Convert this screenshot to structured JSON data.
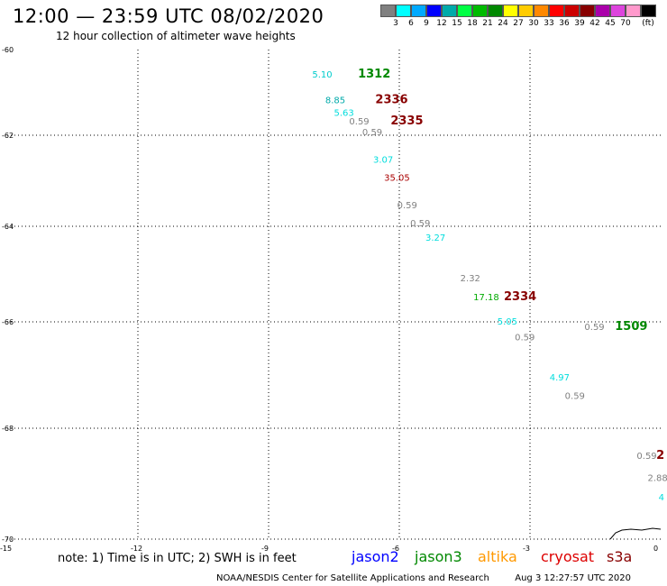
{
  "header": {
    "title": "12:00 — 23:59 UTC 08/02/2020",
    "subtitle": "12 hour collection of altimeter wave heights"
  },
  "legend": {
    "colors": [
      "#808080",
      "#00ffff",
      "#00aaff",
      "#0000ff",
      "#00aaaa",
      "#00ff44",
      "#00bb00",
      "#008800",
      "#ffff00",
      "#ffcc00",
      "#ff8800",
      "#ff0000",
      "#cc0000",
      "#880000",
      "#aa00aa",
      "#dd44dd",
      "#ff99cc",
      "#000000"
    ],
    "labels": [
      "3",
      "6",
      "9",
      "12",
      "15",
      "18",
      "21",
      "24",
      "27",
      "30",
      "33",
      "36",
      "39",
      "42",
      "45",
      "70",
      "(ft)"
    ]
  },
  "axes": {
    "y_ticks": [
      "-60",
      "-62",
      "-64",
      "-66",
      "-68",
      "-70"
    ],
    "x_ticks": [
      "-15",
      "-12",
      "-9",
      "-6",
      "-3",
      "0"
    ]
  },
  "map_data": {
    "type": "altimeter-track-map",
    "lon_range": [
      -15,
      0
    ],
    "lat_range": [
      -70,
      -60
    ],
    "grid": "dotted",
    "track_labels": [
      {
        "text": "1312",
        "lon": -6.95,
        "lat": -60.65,
        "color": "#008800",
        "bold": true
      },
      {
        "text": "2336",
        "lon": -6.55,
        "lat": -61.25,
        "color": "#880000",
        "bold": true
      },
      {
        "text": "2335",
        "lon": -6.2,
        "lat": -61.75,
        "color": "#880000",
        "bold": true
      },
      {
        "text": "1509",
        "lon": -1.05,
        "lat": -66.15,
        "color": "#008800",
        "bold": true
      },
      {
        "text": "2334",
        "lon": -3.6,
        "lat": -65.55,
        "color": "#880000",
        "bold": true
      },
      {
        "text": "2",
        "lon": -0.1,
        "lat": -68.55,
        "color": "#880000",
        "bold": true
      }
    ],
    "swh_values": [
      {
        "text": "5.10",
        "lon": -8.0,
        "lat": -60.65,
        "color": "#00cccc"
      },
      {
        "text": "8.85",
        "lon": -7.7,
        "lat": -61.25,
        "color": "#00aaaa"
      },
      {
        "text": "5.63",
        "lon": -7.5,
        "lat": -61.55,
        "color": "#00dddd"
      },
      {
        "text": "0.59",
        "lon": -7.15,
        "lat": -61.75,
        "color": "#808080"
      },
      {
        "text": "0.59",
        "lon": -6.85,
        "lat": -62.0,
        "color": "#808080"
      },
      {
        "text": "3.07",
        "lon": -6.6,
        "lat": -62.6,
        "color": "#00dddd"
      },
      {
        "text": "35.05",
        "lon": -6.35,
        "lat": -63.0,
        "color": "#aa0000"
      },
      {
        "text": "0.59",
        "lon": -6.05,
        "lat": -63.6,
        "color": "#808080"
      },
      {
        "text": "0.59",
        "lon": -5.75,
        "lat": -64.0,
        "color": "#808080"
      },
      {
        "text": "3.27",
        "lon": -5.4,
        "lat": -64.3,
        "color": "#00dddd"
      },
      {
        "text": "2.32",
        "lon": -4.6,
        "lat": -65.15,
        "color": "#808080"
      },
      {
        "text": "17.18",
        "lon": -4.3,
        "lat": -65.55,
        "color": "#00aa00"
      },
      {
        "text": "5.05",
        "lon": -3.75,
        "lat": -66.05,
        "color": "#00dddd"
      },
      {
        "text": "0.59",
        "lon": -3.35,
        "lat": -66.35,
        "color": "#808080"
      },
      {
        "text": "0.59",
        "lon": -1.75,
        "lat": -66.15,
        "color": "#808080"
      },
      {
        "text": "4.97",
        "lon": -2.55,
        "lat": -67.1,
        "color": "#00dddd"
      },
      {
        "text": "0.59",
        "lon": -2.2,
        "lat": -67.45,
        "color": "#808080"
      },
      {
        "text": "0.59",
        "lon": -0.55,
        "lat": -68.55,
        "color": "#808080"
      },
      {
        "text": "2.88",
        "lon": -0.3,
        "lat": -68.95,
        "color": "#808080"
      },
      {
        "text": "4",
        "lon": -0.05,
        "lat": -69.3,
        "color": "#00dddd"
      }
    ]
  },
  "footer": {
    "note": "note: 1) Time is in UTC; 2) SWH is in feet",
    "satellites": [
      {
        "name": "jason2",
        "color": "#0000ff"
      },
      {
        "name": "jason3",
        "color": "#008800"
      },
      {
        "name": "altika",
        "color": "#ff9900"
      },
      {
        "name": "cryosat",
        "color": "#dd0000"
      },
      {
        "name": "s3a",
        "color": "#880000"
      }
    ],
    "credit": "NOAA/NESDIS Center for Satellite Applications and Research",
    "timestamp": "Aug  3 12:27:57 UTC 2020"
  }
}
